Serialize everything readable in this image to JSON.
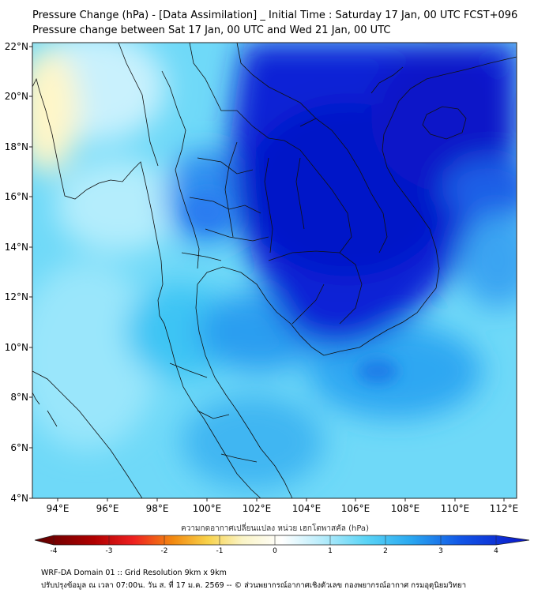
{
  "title_line1": "Pressure Change (hPa) - [Data Assimilation] _ Initial Time : Saturday 17 Jan, 00 UTC FCST+096",
  "title_line2": "Pressure change between Sat 17 Jan, 00 UTC and Wed 21 Jan, 00 UTC",
  "lat_labels": [
    "22°N",
    "20°N",
    "18°N",
    "16°N",
    "14°N",
    "12°N",
    "10°N",
    "8°N",
    "6°N",
    "4°N"
  ],
  "lon_labels": [
    "94°E",
    "96°E",
    "98°E",
    "100°E",
    "102°E",
    "104°E",
    "106°E",
    "108°E",
    "110°E",
    "112°E"
  ],
  "colorbar": {
    "label": "ความกดอากาศเปลี่ยนแปลง หน่วย เฮกโตพาสคัล (hPa)",
    "ticks": [
      "-4",
      "-3",
      "-2",
      "-1",
      "0",
      "1",
      "2",
      "3",
      "4"
    ],
    "range": [
      -4,
      4
    ],
    "colors": {
      "neg4": "#5a0000",
      "neg3": "#dd1010",
      "neg2": "#f4a510",
      "neg1": "#f8ee9a",
      "zero": "#ffffff",
      "pos1": "#b8ecfb",
      "pos2": "#40cbf3",
      "pos3": "#1a86ee",
      "pos4": "#0a14c8"
    }
  },
  "map": {
    "lat_range": [
      4,
      22
    ],
    "lon_range": [
      93,
      112.5
    ],
    "field_colors": {
      "light": "#c9f1fd",
      "mid": "#5dd6f7",
      "deep": "#2aa6f0",
      "blue": "#1234e0",
      "dark": "#0612c6",
      "yellow": "#fff4c0"
    }
  },
  "footer_line1": "WRF-DA Domain 01 :: Grid Resolution 9km x 9km",
  "footer_line2": "ปรับปรุงข้อมูล ณ เวลา 07:00น. วัน ส. ที่ 17 ม.ค. 2569 -- © ส่วนพยากรณ์อากาศเชิงตัวเลข กองพยากรณ์อากาศ กรมอุตุนิยมวิทยา"
}
